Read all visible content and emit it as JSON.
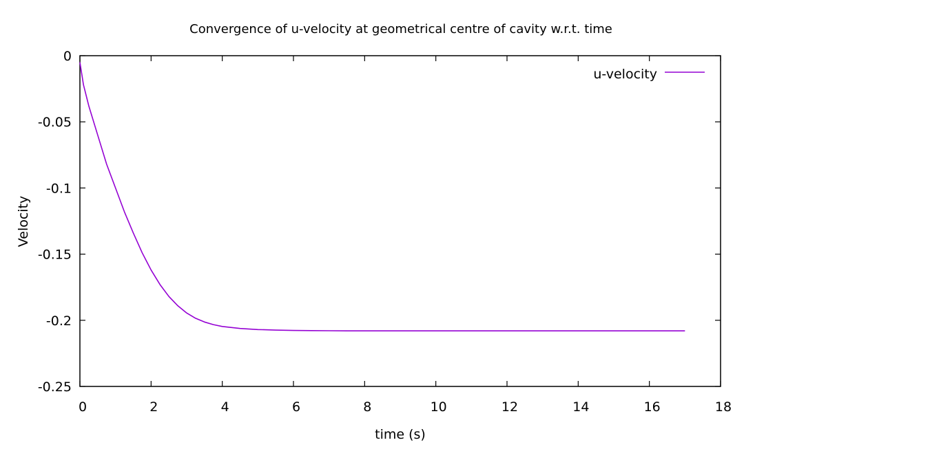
{
  "chart_data": {
    "type": "line",
    "title": "Convergence of u-velocity at geometrical centre of cavity w.r.t. time",
    "xlabel": "time (s)",
    "ylabel": "Velocity",
    "xlim": [
      0,
      18
    ],
    "ylim": [
      -0.25,
      0
    ],
    "xticks": [
      0,
      2,
      4,
      6,
      8,
      10,
      12,
      14,
      16,
      18
    ],
    "yticks": [
      0,
      -0.05,
      -0.1,
      -0.15,
      -0.2,
      -0.25
    ],
    "xtick_labels": [
      "0",
      "2",
      "4",
      "6",
      "8",
      "10",
      "12",
      "14",
      "16",
      "18"
    ],
    "ytick_labels": [
      "0",
      "-0.05",
      "-0.1",
      "-0.15",
      "-0.2",
      "-0.25"
    ],
    "grid": false,
    "legend_position": "top-right",
    "series": [
      {
        "name": "u-velocity",
        "color": "#9400d3",
        "x": [
          0,
          0.1,
          0.25,
          0.5,
          0.75,
          1.0,
          1.25,
          1.5,
          1.75,
          2.0,
          2.25,
          2.5,
          2.75,
          3.0,
          3.25,
          3.5,
          3.75,
          4.0,
          4.5,
          5.0,
          5.5,
          6.0,
          6.5,
          7.0,
          7.5,
          8.0,
          9.0,
          10.0,
          11.0,
          12.0,
          13.0,
          14.0,
          15.0,
          16.0,
          17.0
        ],
        "y": [
          -0.005,
          -0.022,
          -0.038,
          -0.06,
          -0.082,
          -0.1,
          -0.118,
          -0.134,
          -0.149,
          -0.162,
          -0.173,
          -0.182,
          -0.189,
          -0.1945,
          -0.1985,
          -0.2013,
          -0.2033,
          -0.2047,
          -0.2062,
          -0.207,
          -0.2074,
          -0.2077,
          -0.2078,
          -0.2079,
          -0.208,
          -0.208,
          -0.208,
          -0.208,
          -0.208,
          -0.208,
          -0.208,
          -0.208,
          -0.208,
          -0.208,
          -0.208
        ]
      }
    ]
  }
}
